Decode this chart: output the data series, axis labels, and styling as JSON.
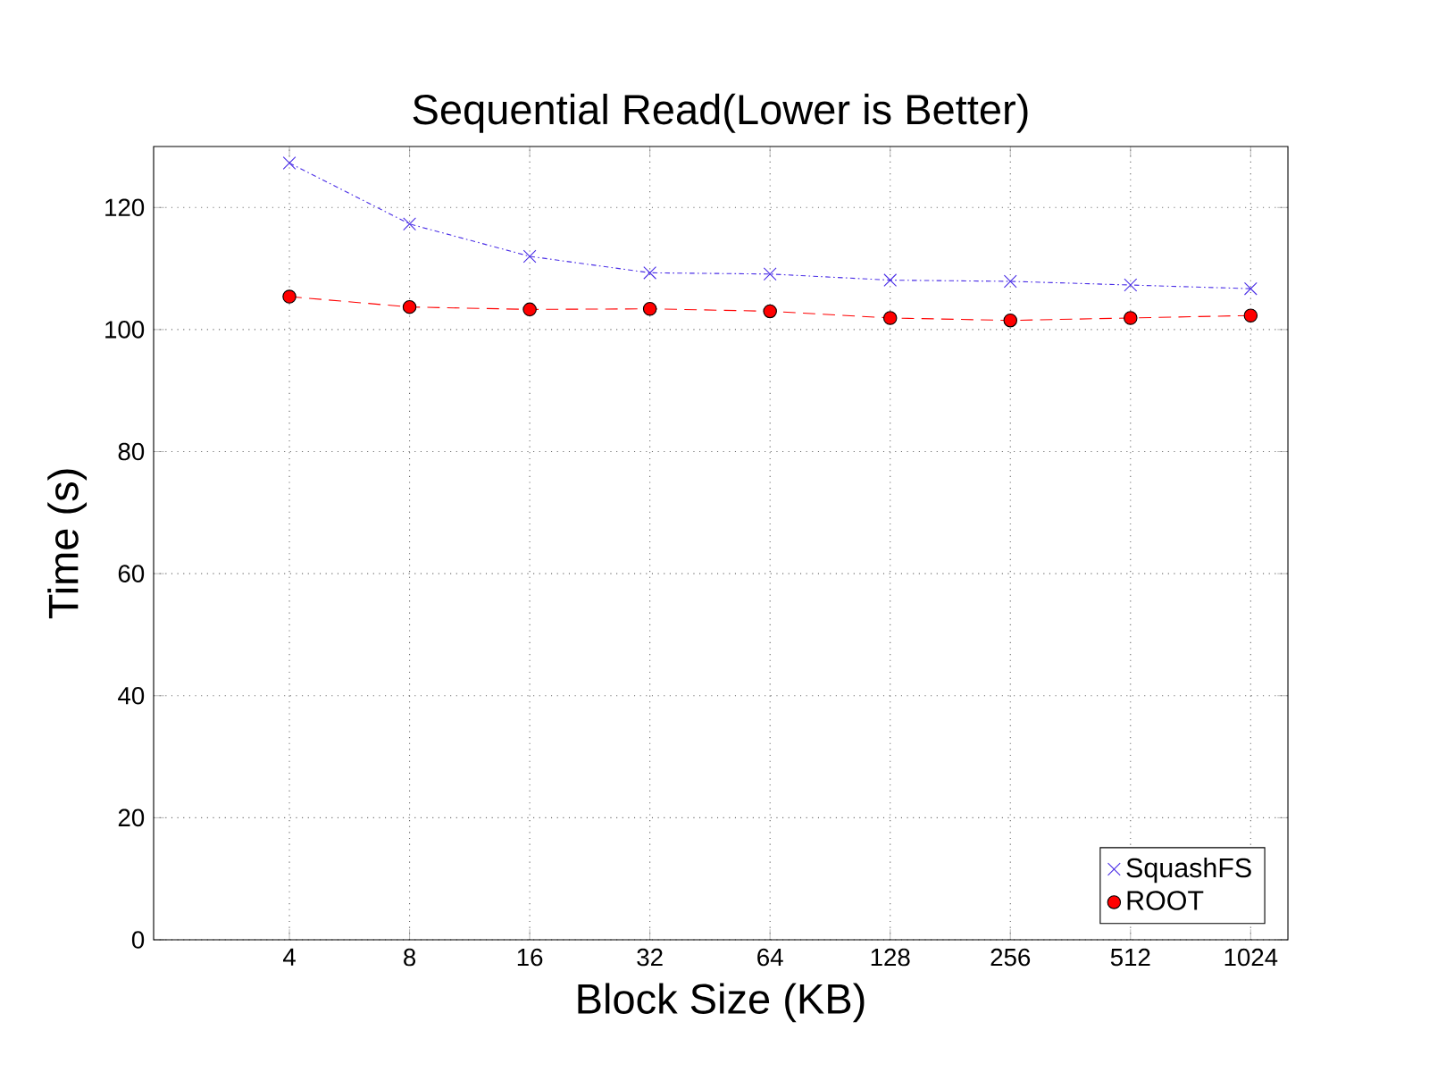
{
  "chart_data": {
    "type": "line",
    "title": "Sequential Read(Lower is Better)",
    "xlabel": "Block Size (KB)",
    "ylabel": "Time (s)",
    "categories": [
      "4",
      "8",
      "16",
      "32",
      "64",
      "128",
      "256",
      "512",
      "1024"
    ],
    "series": [
      {
        "name": "SquashFS",
        "color": "#4a2ee6",
        "marker": "cross",
        "line_style": "dashdot",
        "values": [
          127.3,
          117.3,
          112,
          109.3,
          109.1,
          108.1,
          107.9,
          107.3,
          106.7
        ]
      },
      {
        "name": "ROOT",
        "color": "#ff0000",
        "marker": "circle",
        "line_style": "dashed",
        "values": [
          105.4,
          103.7,
          103.3,
          103.4,
          103,
          101.9,
          101.5,
          101.9,
          102.3
        ]
      }
    ],
    "ylim": [
      0,
      130
    ],
    "yticks": [
      0,
      20,
      40,
      60,
      80,
      100,
      120
    ],
    "grid": true,
    "legend": "bottom right"
  }
}
